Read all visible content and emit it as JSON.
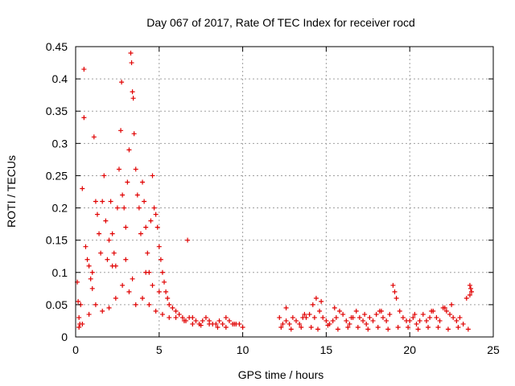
{
  "chart_data": {
    "type": "scatter",
    "title": "Day 067 of 2017, Rate Of TEC Index for receiver rocd",
    "xlabel": "GPS time / hours",
    "ylabel": "ROTI / TECUs",
    "xlim": [
      0,
      25
    ],
    "ylim": [
      0,
      0.45
    ],
    "xticks": [
      "0",
      "5",
      "10",
      "15",
      "20",
      "25"
    ],
    "yticks": [
      "0",
      "0.05",
      "0.1",
      "0.15",
      "0.2",
      "0.25",
      "0.3",
      "0.35",
      "0.4",
      "0.45"
    ],
    "grid": true,
    "marker": "+",
    "color": "#e00000",
    "series": [
      {
        "name": "ROTI",
        "x": [
          0.1,
          0.15,
          0.2,
          0.25,
          0.3,
          0.4,
          0.5,
          0.5,
          0.6,
          0.7,
          0.8,
          0.9,
          1.0,
          1.1,
          1.2,
          1.3,
          1.4,
          1.5,
          1.6,
          1.7,
          1.8,
          1.9,
          2.0,
          2.1,
          2.2,
          2.3,
          2.4,
          2.5,
          2.6,
          2.7,
          2.75,
          2.8,
          2.9,
          3.0,
          3.1,
          3.2,
          3.3,
          3.35,
          3.4,
          3.45,
          3.5,
          3.6,
          3.7,
          3.8,
          3.9,
          4.0,
          4.1,
          4.2,
          4.3,
          4.4,
          4.5,
          4.6,
          4.7,
          4.8,
          4.9,
          5.0,
          5.1,
          5.2,
          5.3,
          5.4,
          5.5,
          5.6,
          5.8,
          6.0,
          6.2,
          6.4,
          6.6,
          6.8,
          7.0,
          7.2,
          7.4,
          7.6,
          7.8,
          8.0,
          8.2,
          8.4,
          8.6,
          8.8,
          9.0,
          9.2,
          9.4,
          9.6,
          9.8,
          10.0,
          0.2,
          0.4,
          0.8,
          1.2,
          1.6,
          2.0,
          2.4,
          2.8,
          3.2,
          3.6,
          4.0,
          4.4,
          4.8,
          5.2,
          5.6,
          6.0,
          6.5,
          7.0,
          7.5,
          8.0,
          8.5,
          9.0,
          9.5,
          1.0,
          2.2,
          3.0,
          3.4,
          4.2,
          4.6,
          5.0,
          6.7,
          12.2,
          12.4,
          12.6,
          12.8,
          13.0,
          13.2,
          13.4,
          13.6,
          13.8,
          14.0,
          14.2,
          14.4,
          14.6,
          14.8,
          15.0,
          15.2,
          15.4,
          15.6,
          15.8,
          16.0,
          16.2,
          16.4,
          16.6,
          16.8,
          17.0,
          17.2,
          17.4,
          17.6,
          17.8,
          18.0,
          18.2,
          18.4,
          18.6,
          18.8,
          19.0,
          19.2,
          19.4,
          19.6,
          19.8,
          20.0,
          20.2,
          20.4,
          20.6,
          20.8,
          21.0,
          21.2,
          21.4,
          21.6,
          21.8,
          22.0,
          22.2,
          22.4,
          22.6,
          22.8,
          23.0,
          23.2,
          23.4,
          23.6,
          23.7,
          12.3,
          12.9,
          13.5,
          14.1,
          14.5,
          15.1,
          15.7,
          16.3,
          16.9,
          17.5,
          18.1,
          18.7,
          19.3,
          19.9,
          20.5,
          21.1,
          21.7,
          22.3,
          22.9,
          23.5,
          12.6,
          13.7,
          14.3,
          14.7,
          15.5,
          16.5,
          17.3,
          18.3,
          19.1,
          20.3,
          21.3,
          22.1,
          22.5,
          23.6,
          23.65
        ],
        "y": [
          0.085,
          0.055,
          0.03,
          0.02,
          0.05,
          0.23,
          0.34,
          0.415,
          0.14,
          0.12,
          0.11,
          0.09,
          0.075,
          0.31,
          0.21,
          0.19,
          0.16,
          0.13,
          0.21,
          0.25,
          0.18,
          0.12,
          0.15,
          0.21,
          0.16,
          0.13,
          0.11,
          0.2,
          0.26,
          0.32,
          0.395,
          0.22,
          0.2,
          0.17,
          0.24,
          0.29,
          0.44,
          0.425,
          0.38,
          0.37,
          0.315,
          0.26,
          0.22,
          0.2,
          0.16,
          0.24,
          0.21,
          0.17,
          0.13,
          0.1,
          0.18,
          0.25,
          0.2,
          0.19,
          0.17,
          0.14,
          0.12,
          0.1,
          0.085,
          0.07,
          0.06,
          0.05,
          0.045,
          0.04,
          0.035,
          0.03,
          0.025,
          0.03,
          0.03,
          0.025,
          0.02,
          0.025,
          0.03,
          0.025,
          0.02,
          0.02,
          0.025,
          0.02,
          0.03,
          0.025,
          0.02,
          0.02,
          0.02,
          0.015,
          0.015,
          0.02,
          0.035,
          0.05,
          0.04,
          0.045,
          0.06,
          0.08,
          0.07,
          0.05,
          0.06,
          0.05,
          0.04,
          0.035,
          0.03,
          0.03,
          0.025,
          0.02,
          0.018,
          0.02,
          0.015,
          0.015,
          0.02,
          0.1,
          0.11,
          0.12,
          0.09,
          0.1,
          0.08,
          0.07,
          0.15,
          0.03,
          0.02,
          0.025,
          0.02,
          0.03,
          0.025,
          0.02,
          0.03,
          0.03,
          0.035,
          0.05,
          0.06,
          0.04,
          0.03,
          0.025,
          0.02,
          0.025,
          0.03,
          0.04,
          0.035,
          0.025,
          0.02,
          0.03,
          0.04,
          0.03,
          0.025,
          0.02,
          0.03,
          0.025,
          0.035,
          0.04,
          0.03,
          0.025,
          0.035,
          0.08,
          0.06,
          0.04,
          0.03,
          0.025,
          0.025,
          0.03,
          0.02,
          0.025,
          0.035,
          0.025,
          0.03,
          0.04,
          0.03,
          0.025,
          0.045,
          0.04,
          0.035,
          0.03,
          0.025,
          0.03,
          0.02,
          0.06,
          0.08,
          0.07,
          0.015,
          0.012,
          0.015,
          0.015,
          0.012,
          0.018,
          0.012,
          0.015,
          0.015,
          0.012,
          0.015,
          0.012,
          0.015,
          0.015,
          0.012,
          0.015,
          0.015,
          0.012,
          0.015,
          0.012,
          0.045,
          0.035,
          0.03,
          0.055,
          0.045,
          0.03,
          0.035,
          0.04,
          0.07,
          0.035,
          0.04,
          0.045,
          0.05,
          0.065,
          0.075
        ]
      }
    ]
  }
}
